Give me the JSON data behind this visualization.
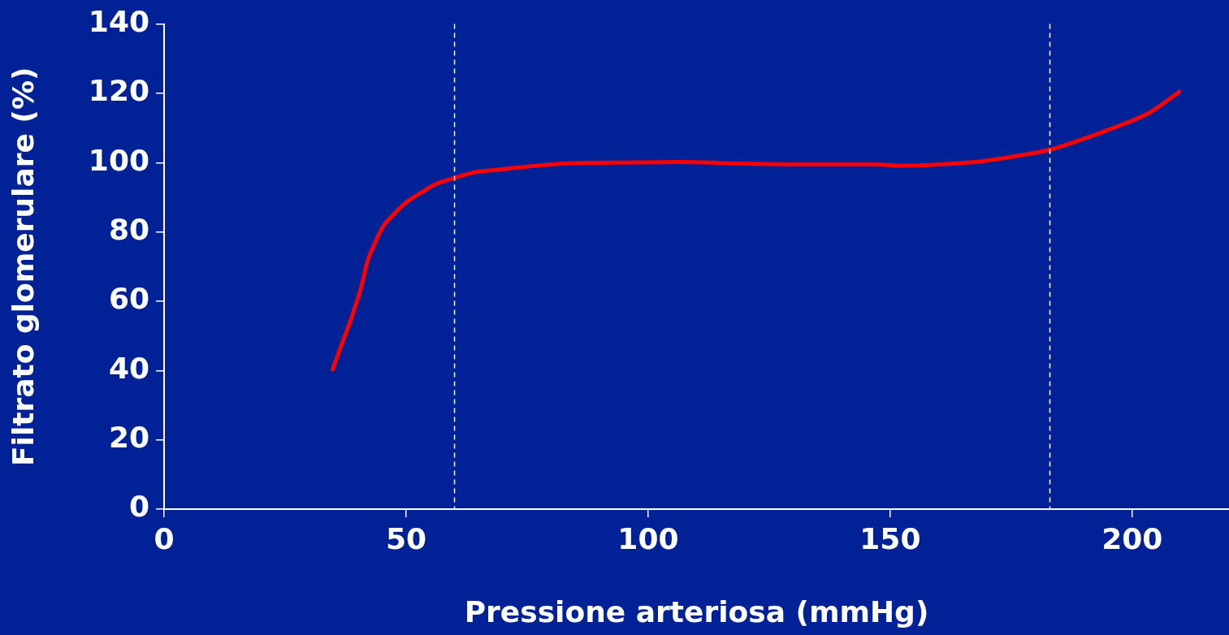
{
  "chart_data": {
    "type": "line",
    "xlabel": "Pressione arteriosa (mmHg)",
    "ylabel": "Filtrato glomerulare (%)",
    "x": [
      34.8,
      36.5,
      38.5,
      40.7,
      42,
      43.2,
      45.2,
      47.4,
      49.9,
      53.2,
      56.1,
      59.6,
      64.1,
      70,
      76.7,
      83.3,
      93.4,
      106.8,
      116.8,
      133.6,
      147,
      152,
      160.3,
      169.5,
      177,
      182.9,
      188.8,
      195.5,
      203.8,
      209.7
    ],
    "series": [
      {
        "color": "#ff0000",
        "values": [
          40.3,
          46.8,
          54.4,
          64,
          71.5,
          75.7,
          81.5,
          85,
          88.4,
          91.4,
          93.8,
          95.4,
          97.2,
          98.1,
          99.1,
          99.8,
          100,
          100.2,
          99.8,
          99.5,
          99.5,
          99.1,
          99.5,
          100.5,
          102.1,
          103.7,
          106.3,
          109.7,
          114.6,
          120.4
        ]
      }
    ],
    "xlim": [
      0,
      220
    ],
    "xticks": [
      0,
      50,
      100,
      150,
      200
    ],
    "ylim": [
      0,
      140
    ],
    "yticks": [
      0,
      20,
      40,
      60,
      80,
      100,
      120,
      140
    ],
    "ref_lines": [
      {
        "axis": "x",
        "value": 60,
        "color": "#ffffff",
        "line_style": "dashed"
      },
      {
        "axis": "x",
        "value": 183,
        "color": "#ffffff",
        "line_style": "dashed"
      }
    ],
    "grid": false,
    "legend": false,
    "marker": "none",
    "line_style": "solid"
  }
}
